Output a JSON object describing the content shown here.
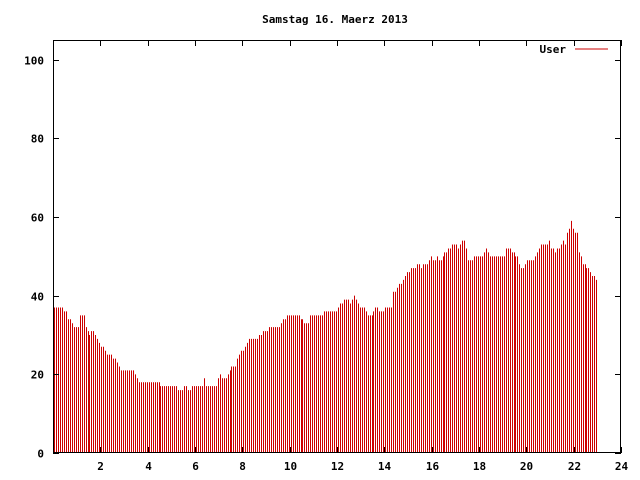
{
  "chart_data": {
    "type": "bar",
    "title": "Samstag 16. Maerz 2013",
    "xlabel": "",
    "ylabel": "",
    "xlim": [
      0,
      24
    ],
    "ylim": [
      0,
      105
    ],
    "x_ticks": [
      "2",
      "4",
      "6",
      "8",
      "10",
      "12",
      "14",
      "16",
      "18",
      "20",
      "22",
      "24"
    ],
    "y_ticks": [
      "0",
      "20",
      "40",
      "60",
      "80",
      "100"
    ],
    "grid": false,
    "legend": "top-right",
    "series": [
      {
        "name": "User",
        "color": "#cc0000",
        "interval_minutes": 5,
        "values": [
          37,
          37,
          37,
          37,
          37,
          36,
          36,
          34,
          34,
          33,
          32,
          32,
          32,
          35,
          35,
          35,
          32,
          31,
          30,
          31,
          31,
          30,
          29,
          28,
          27,
          27,
          26,
          25,
          25,
          25,
          24,
          24,
          23,
          22,
          21,
          21,
          21,
          21,
          21,
          21,
          21,
          20,
          19,
          18,
          18,
          18,
          18,
          18,
          18,
          18,
          18,
          18,
          18,
          18,
          17,
          17,
          17,
          17,
          17,
          17,
          17,
          17,
          17,
          16,
          16,
          16,
          17,
          17,
          16,
          16,
          17,
          17,
          17,
          17,
          17,
          17,
          19,
          17,
          17,
          17,
          17,
          17,
          17,
          19,
          20,
          19,
          19,
          19,
          20,
          21,
          22,
          22,
          22,
          24,
          25,
          26,
          26,
          27,
          28,
          29,
          29,
          29,
          29,
          29,
          30,
          30,
          31,
          31,
          31,
          32,
          32,
          32,
          32,
          32,
          32,
          33,
          34,
          34,
          35,
          35,
          35,
          35,
          35,
          35,
          35,
          34,
          34,
          33,
          33,
          33,
          35,
          35,
          35,
          35,
          35,
          35,
          35,
          36,
          36,
          36,
          36,
          36,
          36,
          36,
          37,
          38,
          38,
          39,
          39,
          39,
          38,
          39,
          40,
          39,
          38,
          37,
          37,
          37,
          36,
          35,
          35,
          35,
          36,
          37,
          37,
          36,
          36,
          36,
          37,
          37,
          37,
          37,
          41,
          41,
          42,
          43,
          43,
          44,
          45,
          46,
          46,
          47,
          47,
          47,
          48,
          48,
          47,
          48,
          48,
          48,
          49,
          50,
          49,
          49,
          50,
          49,
          49,
          50,
          51,
          51,
          52,
          52,
          53,
          53,
          53,
          52,
          53,
          54,
          54,
          52,
          49,
          49,
          49,
          50,
          50,
          50,
          50,
          50,
          51,
          52,
          51,
          50,
          50,
          50,
          50,
          50,
          50,
          50,
          50,
          52,
          52,
          52,
          51,
          51,
          50,
          50,
          48,
          47,
          47,
          48,
          49,
          49,
          49,
          49,
          50,
          51,
          52,
          53,
          53,
          53,
          53,
          54,
          52,
          52,
          51,
          52,
          52,
          53,
          54,
          53,
          56,
          57,
          59,
          57,
          56,
          56,
          51,
          50,
          48,
          48,
          47,
          47,
          46,
          45,
          45,
          44
        ]
      }
    ]
  }
}
